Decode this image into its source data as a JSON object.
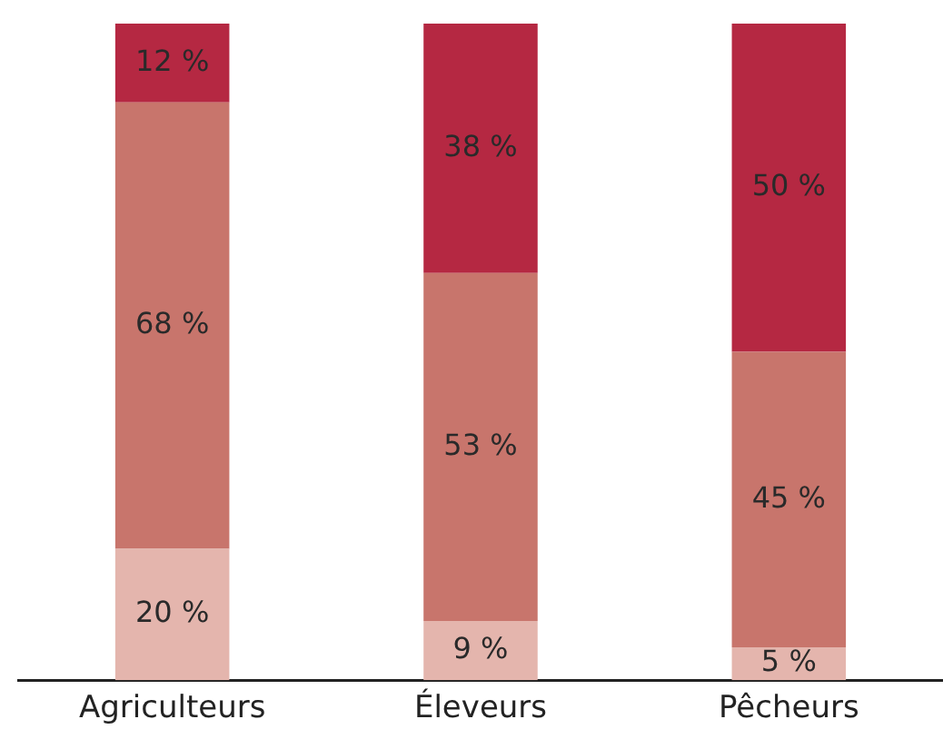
{
  "chart_data": {
    "type": "bar",
    "stacked": true,
    "categories": [
      "Agriculteurs",
      "Éleveurs",
      "Pêcheurs"
    ],
    "ylim": [
      0,
      100
    ],
    "tick_labels": "x",
    "grid": false,
    "legend": false,
    "series": [
      {
        "color": "#e4b5ad",
        "values": [
          20,
          9,
          5
        ],
        "value_labels": [
          "20 %",
          "9 %",
          "5 %"
        ]
      },
      {
        "color": "#c8756c",
        "values": [
          68,
          53,
          45
        ],
        "value_labels": [
          "68 %",
          "53 %",
          "45 %"
        ]
      },
      {
        "color": "#b52842",
        "values": [
          12,
          38,
          50
        ],
        "value_labels": [
          "12 %",
          "38 %",
          "50 %"
        ]
      }
    ]
  }
}
